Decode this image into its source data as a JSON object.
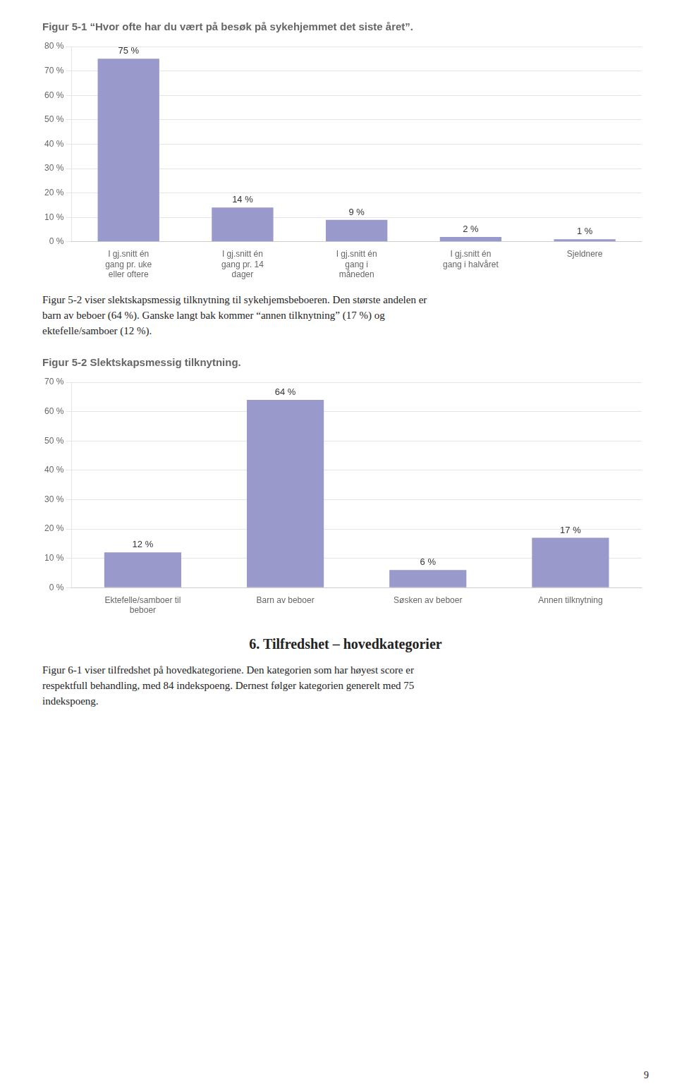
{
  "chart_data": [
    {
      "type": "bar",
      "title": "Figur 5-1 “Hvor ofte har du vært på besøk på sykehjemmet det siste året”.",
      "categories": [
        "I gj.snitt én\ngang pr. uke\neller oftere",
        "I gj.snitt én\ngang pr. 14\ndager",
        "I gj.snitt én\ngang i\nmåneden",
        "I gj.snitt én\ngang i halvåret",
        "Sjeldnere"
      ],
      "values": [
        75,
        14,
        9,
        2,
        1
      ],
      "value_labels": [
        "75 %",
        "14 %",
        "9 %",
        "2 %",
        "1 %"
      ],
      "data_labels": true,
      "color": "#9999cc",
      "ylim": [
        0,
        80
      ],
      "yticks": [
        {
          "value": 0,
          "label": "0 %"
        },
        {
          "value": 10,
          "label": "10 %"
        },
        {
          "value": 20,
          "label": "20 %"
        },
        {
          "value": 30,
          "label": "30 %"
        },
        {
          "value": 40,
          "label": "40 %"
        },
        {
          "value": 50,
          "label": "50 %"
        },
        {
          "value": 60,
          "label": "60 %"
        },
        {
          "value": 70,
          "label": "70 %"
        },
        {
          "value": 80,
          "label": "80 %"
        }
      ],
      "grid": true,
      "annotations": [
        "Figur 5-2 viser slektskapsmessig tilknytning til sykehjemsbeboeren. Den største andelen er",
        "barn av beboer (64 %). Ganske langt bak kommer “annen tilknytning” (17 %) og",
        "ektefelle/samboer (12 %)."
      ]
    },
    {
      "type": "bar",
      "title": "Figur 5-2 Slektskapsmessig tilknytning.",
      "categories": [
        "Ektefelle/samboer til\nbeboer",
        "Barn av beboer",
        "Søsken av beboer",
        "Annen tilknytning"
      ],
      "values": [
        12,
        64,
        6,
        17
      ],
      "value_labels": [
        "12 %",
        "64 %",
        "6 %",
        "17 %"
      ],
      "data_labels": true,
      "color": "#9999cc",
      "ylim": [
        0,
        70
      ],
      "yticks": [
        {
          "value": 0,
          "label": "0 %"
        },
        {
          "value": 10,
          "label": "10 %"
        },
        {
          "value": 20,
          "label": "20 %"
        },
        {
          "value": 30,
          "label": "30 %"
        },
        {
          "value": 40,
          "label": "40 %"
        },
        {
          "value": 50,
          "label": "50 %"
        },
        {
          "value": 60,
          "label": "60 %"
        },
        {
          "value": 70,
          "label": "70 %"
        }
      ],
      "grid": true,
      "annotations": [
        "6. Tilfredshet – hovedkategorier",
        "Figur 6-1 viser tilfredshet på hovedkategoriene. Den kategorien som har høyest score er",
        "respektfull behandling, med 84 indekspoeng. Dernest følger kategorien generelt med 75",
        "indekspoeng.",
        "9"
      ]
    }
  ]
}
